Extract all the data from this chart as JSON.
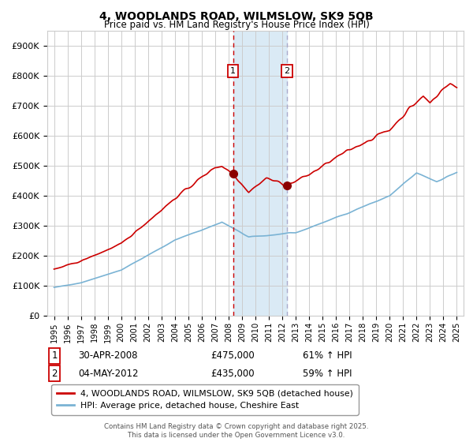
{
  "title_line1": "4, WOODLANDS ROAD, WILMSLOW, SK9 5QB",
  "title_line2": "Price paid vs. HM Land Registry's House Price Index (HPI)",
  "legend_line1": "4, WOODLANDS ROAD, WILMSLOW, SK9 5QB (detached house)",
  "legend_line2": "HPI: Average price, detached house, Cheshire East",
  "annotation1_label": "1",
  "annotation1_date": "30-APR-2008",
  "annotation1_price": "£475,000",
  "annotation1_hpi": "61% ↑ HPI",
  "annotation2_label": "2",
  "annotation2_date": "04-MAY-2012",
  "annotation2_price": "£435,000",
  "annotation2_hpi": "59% ↑ HPI",
  "sale1_year": 2008.33,
  "sale1_value": 475000,
  "sale2_year": 2012.34,
  "sale2_value": 435000,
  "hpi_color": "#7ab3d4",
  "property_color": "#cc0000",
  "shade_color": "#daeaf5",
  "vline1_color": "#cc0000",
  "vline2_color": "#aaaacc",
  "grid_color": "#cccccc",
  "bg_color": "#ffffff",
  "y_ticks": [
    0,
    100000,
    200000,
    300000,
    400000,
    500000,
    600000,
    700000,
    800000,
    900000
  ],
  "y_tick_labels": [
    "£0",
    "£100K",
    "£200K",
    "£300K",
    "£400K",
    "£500K",
    "£600K",
    "£700K",
    "£800K",
    "£900K"
  ],
  "ylim": [
    0,
    950000
  ],
  "xlim_start": 1994.5,
  "xlim_end": 2025.5,
  "footer": "Contains HM Land Registry data © Crown copyright and database right 2025.\nThis data is licensed under the Open Government Licence v3.0.",
  "fig_width": 6.0,
  "fig_height": 5.6,
  "dpi": 100
}
